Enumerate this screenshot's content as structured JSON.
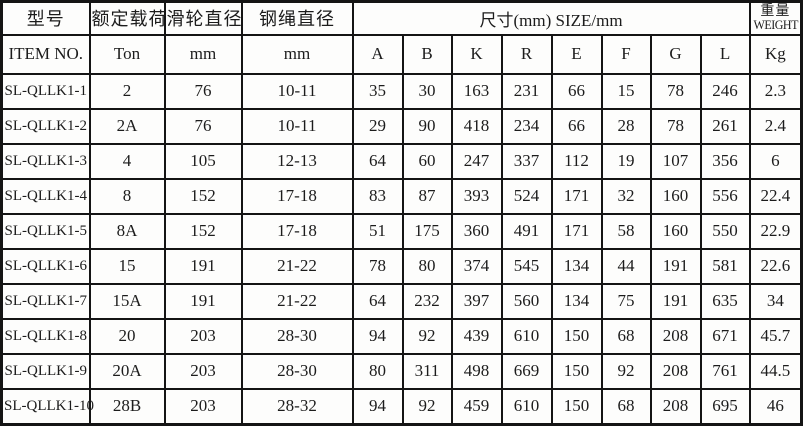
{
  "colors": {
    "background": "#fdfdfc",
    "border": "#141414",
    "text": "#1c1c1c"
  },
  "table": {
    "header": {
      "row1": {
        "model": "型号",
        "rated_load": "额定载荷",
        "sheave_dia": "滑轮直径",
        "rope_dia": "钢绳直径",
        "size": "尺寸(mm) SIZE/mm",
        "weight_cn": "重量",
        "weight_en": "WEIGHT"
      },
      "row2": [
        "ITEM NO.",
        "Ton",
        "mm",
        "mm",
        "A",
        "B",
        "K",
        "R",
        "E",
        "F",
        "G",
        "L",
        "Kg"
      ]
    },
    "rows": [
      [
        "SL-QLLK1-1",
        "2",
        "76",
        "10-11",
        "35",
        "30",
        "163",
        "231",
        "66",
        "15",
        "78",
        "246",
        "2.3"
      ],
      [
        "SL-QLLK1-2",
        "2A",
        "76",
        "10-11",
        "29",
        "90",
        "418",
        "234",
        "66",
        "28",
        "78",
        "261",
        "2.4"
      ],
      [
        "SL-QLLK1-3",
        "4",
        "105",
        "12-13",
        "64",
        "60",
        "247",
        "337",
        "112",
        "19",
        "107",
        "356",
        "6"
      ],
      [
        "SL-QLLK1-4",
        "8",
        "152",
        "17-18",
        "83",
        "87",
        "393",
        "524",
        "171",
        "32",
        "160",
        "556",
        "22.4"
      ],
      [
        "SL-QLLK1-5",
        "8A",
        "152",
        "17-18",
        "51",
        "175",
        "360",
        "491",
        "171",
        "58",
        "160",
        "550",
        "22.9"
      ],
      [
        "SL-QLLK1-6",
        "15",
        "191",
        "21-22",
        "78",
        "80",
        "374",
        "545",
        "134",
        "44",
        "191",
        "581",
        "22.6"
      ],
      [
        "SL-QLLK1-7",
        "15A",
        "191",
        "21-22",
        "64",
        "232",
        "397",
        "560",
        "134",
        "75",
        "191",
        "635",
        "34"
      ],
      [
        "SL-QLLK1-8",
        "20",
        "203",
        "28-30",
        "94",
        "92",
        "439",
        "610",
        "150",
        "68",
        "208",
        "671",
        "45.7"
      ],
      [
        "SL-QLLK1-9",
        "20A",
        "203",
        "28-30",
        "80",
        "311",
        "498",
        "669",
        "150",
        "92",
        "208",
        "761",
        "44.5"
      ],
      [
        "SL-QLLK1-10",
        "28B",
        "203",
        "28-32",
        "94",
        "92",
        "459",
        "610",
        "150",
        "68",
        "208",
        "695",
        "46"
      ]
    ]
  }
}
